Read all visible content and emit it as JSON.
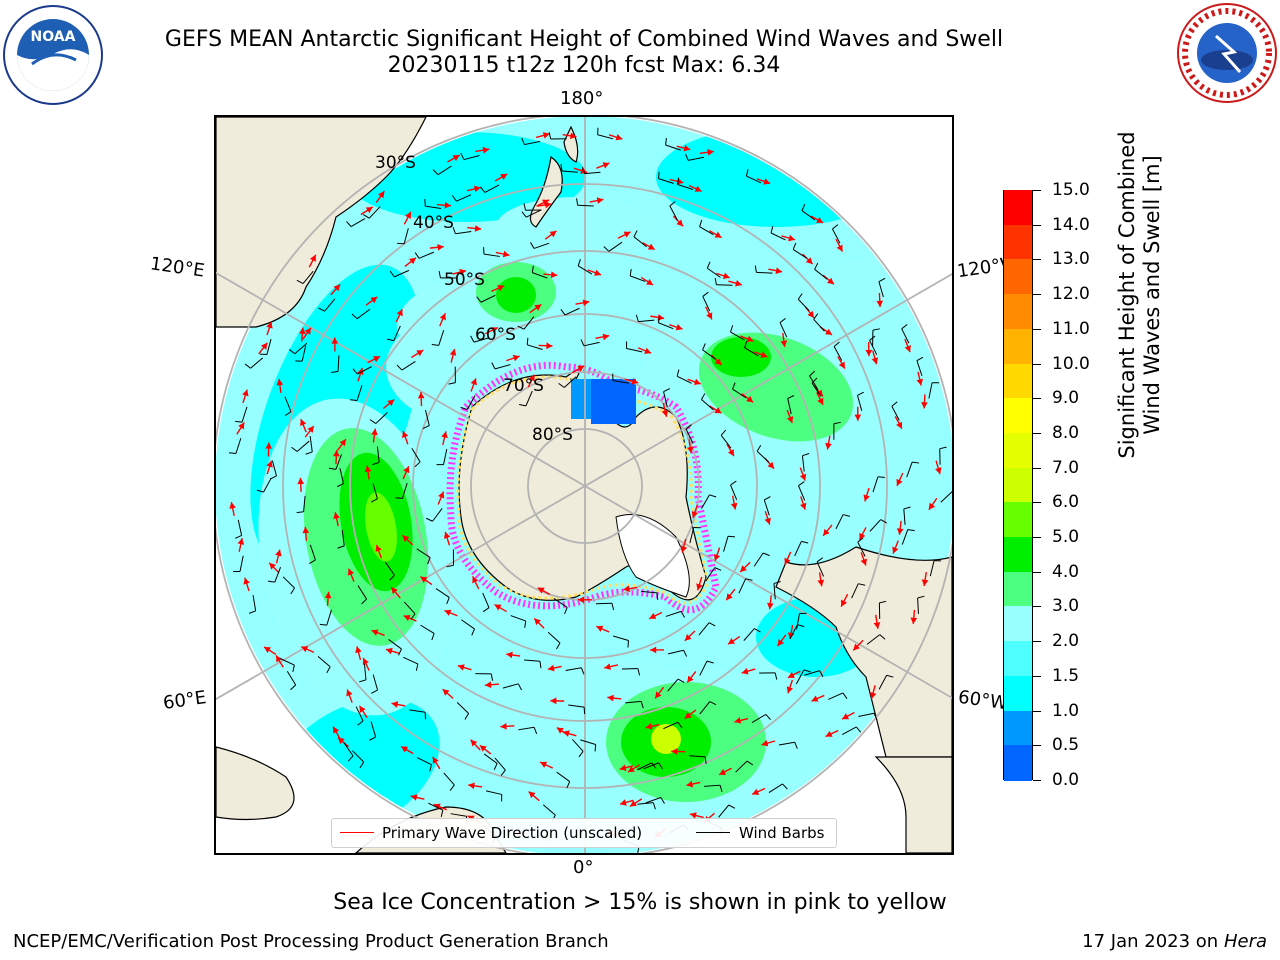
{
  "title": {
    "line1": "GEFS MEAN Antarctic Significant Height of Combined Wind Waves and Swell",
    "line2": "20230115 t12z 120h fcst   Max: 6.34"
  },
  "logos": {
    "left": "noaa-logo",
    "right": "national-weather-service-logo"
  },
  "logo_text": {
    "noaa": "NOAA",
    "nws": "NATIONAL WEATHER SERVICE"
  },
  "map": {
    "projection": "south-polar-stereographic",
    "longitude_labels": {
      "top": "180°",
      "bottom": "0°",
      "left_upper": "120°E",
      "right_upper": "120°W",
      "left_lower": "60°E",
      "right_lower": "60°W"
    },
    "latitude_labels": [
      "30°S",
      "40°S",
      "50°S",
      "60°S",
      "70°S",
      "80°S"
    ],
    "ocean_color": "#96ffff",
    "land_color": "#efecdb",
    "sea_ice_note_colors": [
      "#ff33ff",
      "#ffe066"
    ]
  },
  "legend": {
    "wave_label": "Primary Wave Direction (unscaled)",
    "wind_label": "Wind Barbs",
    "wave_color": "#ff0000",
    "wind_color": "#000000"
  },
  "colorbar": {
    "title_line1": "Significant Height of Combined",
    "title_line2": "Wind Waves and Swell [m]",
    "ticks": [
      "15.0",
      "14.0",
      "13.0",
      "12.0",
      "11.0",
      "10.0",
      "9.0",
      "8.0",
      "7.0",
      "6.0",
      "5.0",
      "4.0",
      "3.0",
      "2.0",
      "1.5",
      "1.0",
      "0.5",
      "0.0"
    ],
    "colors": [
      "#ff0000",
      "#ff3300",
      "#ff6600",
      "#ff8c00",
      "#ffb300",
      "#ffd900",
      "#ffff00",
      "#e6ff00",
      "#ccff00",
      "#66ff00",
      "#00ee00",
      "#4dff80",
      "#99ffff",
      "#4dffff",
      "#00ffff",
      "#0099ff",
      "#0066ff",
      "#0000ff"
    ]
  },
  "sea_ice_note": "Sea Ice Concentration > 15% is shown in pink to yellow",
  "footer": {
    "left": "NCEP/EMC/Verification Post Processing Product Generation Branch",
    "right_prefix": "17 Jan 2023 on ",
    "right_italic": "Hera"
  }
}
